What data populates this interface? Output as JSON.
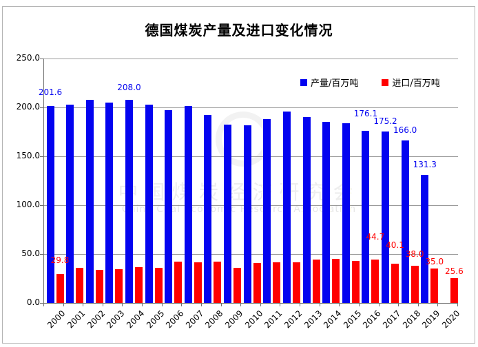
{
  "chart_data": {
    "type": "bar",
    "title": "德国煤炭产量及进口变化情况",
    "categories": [
      "2000",
      "2001",
      "2002",
      "2003",
      "2004",
      "2005",
      "2006",
      "2007",
      "2008",
      "2009",
      "2010",
      "2011",
      "2012",
      "2013",
      "2014",
      "2015",
      "2016",
      "2017",
      "2018",
      "2019",
      "2020"
    ],
    "series": [
      {
        "name": "产量/百万吨",
        "color": "#0303f0",
        "values": [
          201.6,
          202.9,
          207.6,
          204.9,
          208.0,
          202.8,
          197.2,
          201.7,
          192.3,
          182.6,
          181.5,
          188.0,
          195.8,
          190.4,
          185.2,
          183.6,
          176.1,
          175.2,
          166.0,
          131.3,
          null
        ],
        "labels": {
          "2000": "201.6",
          "2004": "208.0",
          "2016": "176.1",
          "2017": "175.2",
          "2018": "166.0",
          "2019": "131.3"
        }
      },
      {
        "name": "进口/百万吨",
        "color": "#ff0000",
        "values": [
          29.8,
          35.7,
          33.6,
          34.7,
          36.8,
          35.9,
          42.3,
          41.8,
          42.3,
          35.9,
          40.6,
          41.5,
          41.5,
          44.6,
          45.1,
          42.7,
          44.7,
          40.1,
          38.0,
          35.0,
          25.6
        ],
        "labels": {
          "2000": "29.8",
          "2016": "44.7",
          "2017": "40.1",
          "2018": "38.0",
          "2019": "35.0",
          "2020": "25.6"
        }
      }
    ],
    "ylim": [
      0,
      250
    ],
    "ytick_labels": [
      "0.0",
      "50.0",
      "100.0",
      "150.0",
      "200.0",
      "250.0"
    ],
    "grid": true,
    "legend_position": "top-right-inside",
    "colors": {
      "grid": "#9b9b9b",
      "axis": "#6e6e6e",
      "border": "#b4b4b4",
      "watermark": "#8c8c8c"
    }
  },
  "watermark": {
    "line1": "中国煤炭经济研究会",
    "line2": "China Coal Economic Research Association"
  }
}
